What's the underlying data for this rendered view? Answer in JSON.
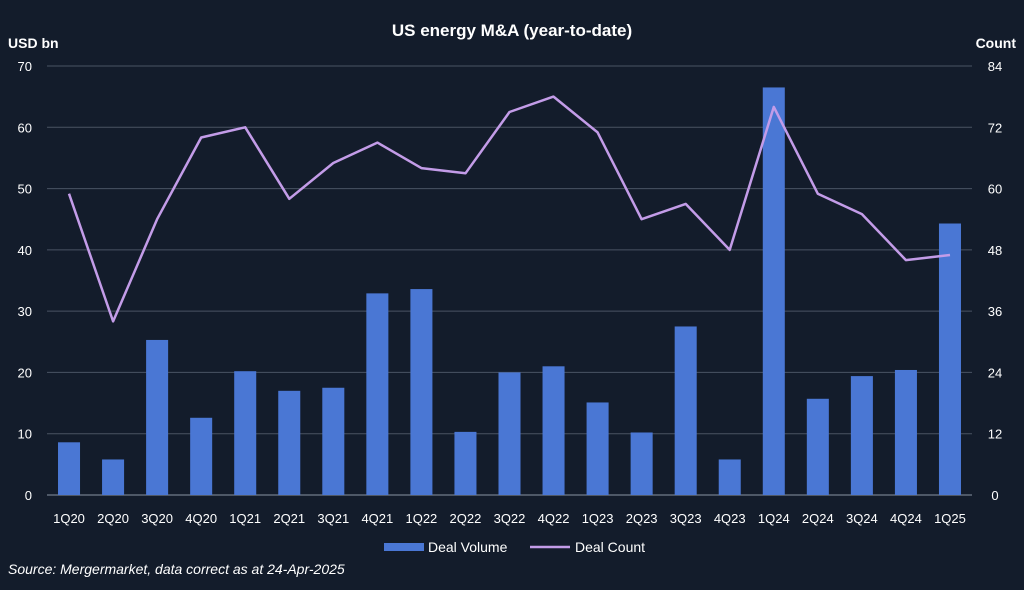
{
  "chart_data": {
    "type": "bar+line",
    "title": "US energy M&A (year-to-date)",
    "y_left_label": "USD bn",
    "y_right_label": "Count",
    "y_left_range": [
      0,
      70
    ],
    "y_left_ticks": [
      0,
      10,
      20,
      30,
      40,
      50,
      60,
      70
    ],
    "y_right_range": [
      0,
      84
    ],
    "y_right_ticks": [
      0,
      12,
      24,
      36,
      48,
      60,
      72,
      84
    ],
    "grid": true,
    "categories": [
      "1Q20",
      "2Q20",
      "3Q20",
      "4Q20",
      "1Q21",
      "2Q21",
      "3Q21",
      "4Q21",
      "1Q22",
      "2Q22",
      "3Q22",
      "4Q22",
      "1Q23",
      "2Q23",
      "3Q23",
      "4Q23",
      "1Q24",
      "2Q24",
      "3Q24",
      "4Q24",
      "1Q25"
    ],
    "series": [
      {
        "name": "Deal Volume",
        "kind": "bar",
        "axis": "left",
        "color": "#4a77d4",
        "values": [
          8.6,
          5.8,
          25.3,
          12.6,
          20.2,
          17.0,
          17.5,
          32.9,
          33.6,
          10.3,
          20.0,
          21.0,
          15.1,
          10.2,
          27.5,
          5.8,
          66.5,
          15.7,
          19.4,
          20.4,
          44.3
        ]
      },
      {
        "name": "Deal Count",
        "kind": "line",
        "axis": "right",
        "color": "#c39ce8",
        "values": [
          59,
          34,
          54,
          70,
          72,
          58,
          65,
          69,
          64,
          63,
          75,
          78,
          71,
          54,
          57,
          48,
          76,
          59,
          55,
          46,
          47
        ]
      }
    ],
    "legend_position": "bottom-center"
  },
  "source_text": "Source: Mergermarket, data correct as at 24-Apr-2025"
}
